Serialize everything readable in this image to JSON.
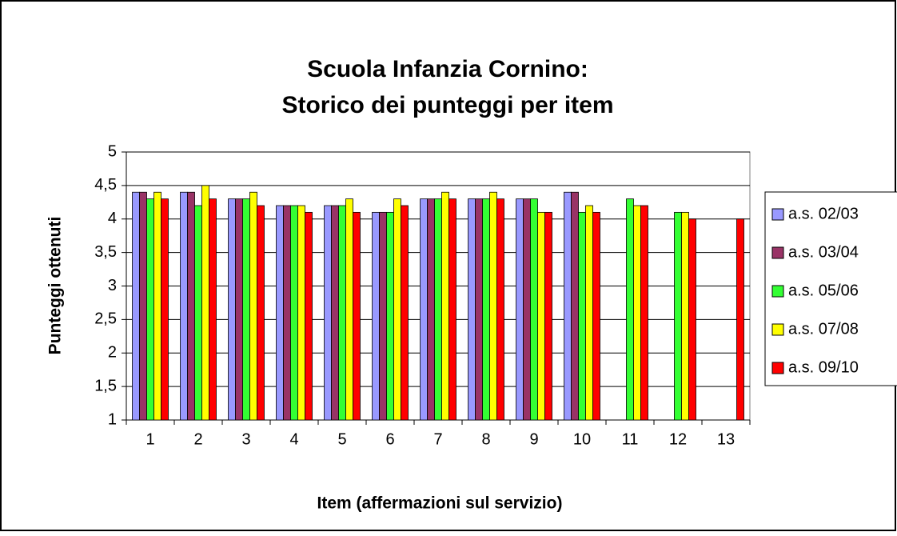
{
  "chart_data": {
    "type": "bar",
    "title": [
      "Scuola Infanzia Cornino:",
      "Storico dei punteggi per item"
    ],
    "xlabel": "Item (affermazioni sul servizio)",
    "ylabel": "Punteggi ottenuti",
    "categories": [
      "1",
      "2",
      "3",
      "4",
      "5",
      "6",
      "7",
      "8",
      "9",
      "10",
      "11",
      "12",
      "13"
    ],
    "series": [
      {
        "name": "a.s. 02/03",
        "color": "#9999ff",
        "values": [
          4.4,
          4.4,
          4.3,
          4.2,
          4.2,
          4.1,
          4.3,
          4.3,
          4.3,
          4.4,
          null,
          null,
          null
        ]
      },
      {
        "name": "a.s. 03/04",
        "color": "#993366",
        "values": [
          4.4,
          4.4,
          4.3,
          4.2,
          4.2,
          4.1,
          4.3,
          4.3,
          4.3,
          4.4,
          null,
          null,
          null
        ]
      },
      {
        "name": "a.s. 05/06",
        "color": "#33ff33",
        "values": [
          4.3,
          4.2,
          4.3,
          4.2,
          4.2,
          4.1,
          4.3,
          4.3,
          4.3,
          4.1,
          4.3,
          4.1,
          null
        ]
      },
      {
        "name": "a.s. 07/08",
        "color": "#ffff00",
        "values": [
          4.4,
          4.5,
          4.4,
          4.2,
          4.3,
          4.3,
          4.4,
          4.4,
          4.1,
          4.2,
          4.2,
          4.1,
          null
        ]
      },
      {
        "name": "a.s. 09/10",
        "color": "#ff0000",
        "values": [
          4.3,
          4.3,
          4.2,
          4.1,
          4.1,
          4.2,
          4.3,
          4.3,
          4.1,
          4.1,
          4.2,
          4.0,
          4.0
        ]
      }
    ],
    "ylim": [
      1,
      5
    ],
    "yticks": [
      1,
      {
        "value": 1.5,
        "label": "1,5"
      },
      2,
      {
        "value": 2.5,
        "label": "2,5"
      },
      3,
      {
        "value": 3.5,
        "label": "3,5"
      },
      4,
      {
        "value": 4.5,
        "label": "4,5"
      },
      5
    ],
    "grid": true,
    "legend": "right"
  }
}
